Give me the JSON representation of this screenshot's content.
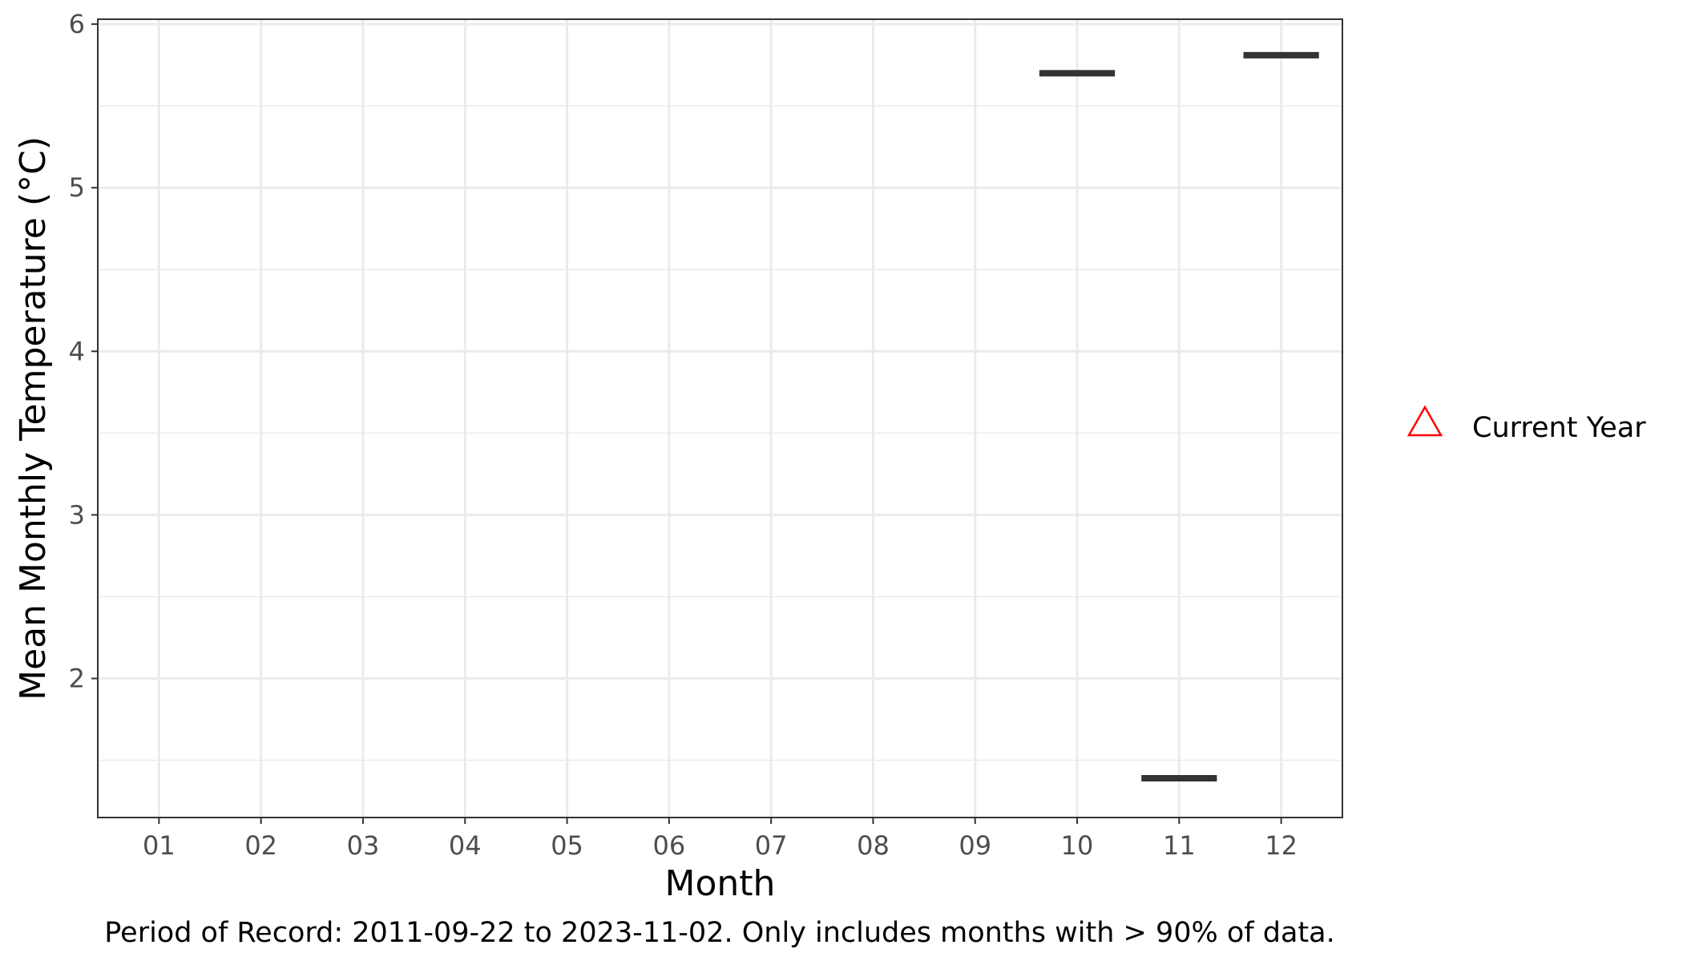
{
  "chart_data": {
    "type": "boxplot",
    "title": "",
    "xlabel": "Month",
    "ylabel": "Mean Monthly Temperature (°C)",
    "categories": [
      "01",
      "02",
      "03",
      "04",
      "05",
      "06",
      "07",
      "08",
      "09",
      "10",
      "11",
      "12"
    ],
    "ylim": [
      1.15,
      6.03
    ],
    "yticks": [
      2,
      3,
      4,
      5,
      6
    ],
    "grid": true,
    "historical_medians": [
      {
        "month": "10",
        "value": 5.7
      },
      {
        "month": "11",
        "value": 1.39
      },
      {
        "month": "12",
        "value": 5.81
      }
    ],
    "current_year": [],
    "legend": {
      "position": "right",
      "entries": [
        {
          "label": "Current Year",
          "marker": "open-triangle",
          "color": "#ff0000"
        }
      ]
    },
    "caption": "Period of Record: 2011-09-22 to 2023-11-02. Only includes months with > 90% of data."
  }
}
